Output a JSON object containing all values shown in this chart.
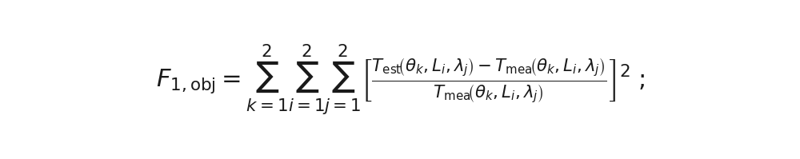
{
  "formula": "F_{1,\\mathrm{obj}} = \\sum_{k=1}^{2}\\sum_{i=1}^{2}\\sum_{j=1}^{2}\\left[\\frac{T_{\\mathrm{est}}\\left(\\theta_k, L_i, \\lambda_j\\right) - T_{\\mathrm{mea}}\\left(\\theta_k, L_i, \\lambda_j\\right)}{T_{\\mathrm{mea}}\\left(\\theta_k, L_i, \\lambda_j\\right)}\\right]^2 \\;\\;;",
  "bg_color": "#ffffff",
  "text_color": "#1a1a1a",
  "fontsize": 22,
  "fig_width": 10.0,
  "fig_height": 1.99,
  "dpi": 100
}
